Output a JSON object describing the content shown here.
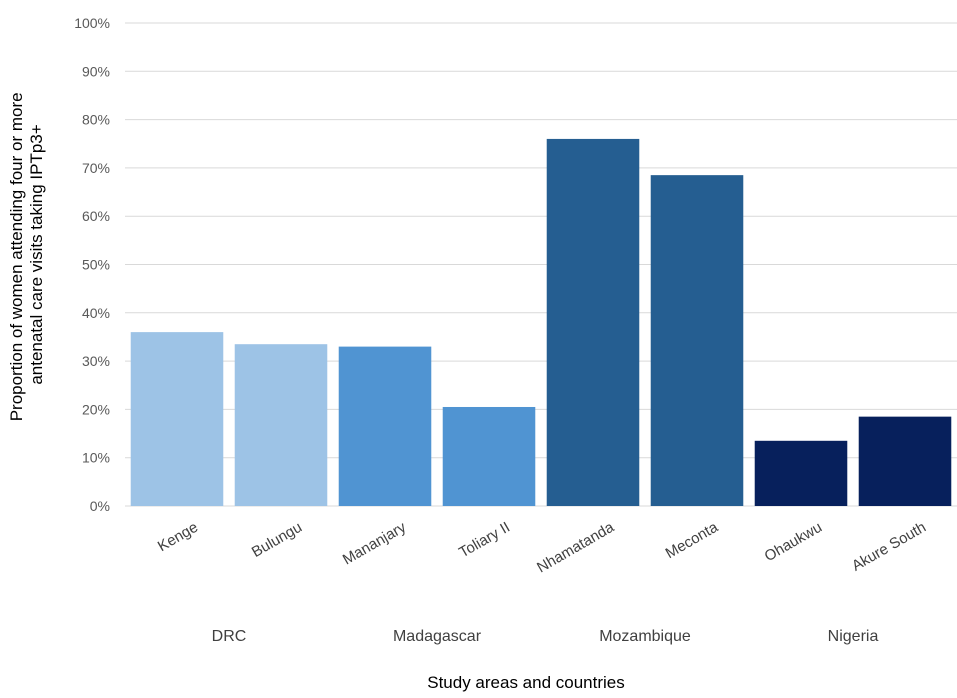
{
  "chart_data": {
    "type": "bar",
    "title": "",
    "xlabel": "Study areas and countries",
    "ylabel_lines": [
      "Proportion of women attending four or more",
      "antenatal care visits taking IPTp3+"
    ],
    "ylim": [
      0,
      100
    ],
    "y_unit": "%",
    "y_ticks": [
      "0%",
      "10%",
      "20%",
      "30%",
      "40%",
      "50%",
      "60%",
      "70%",
      "80%",
      "90%",
      "100%"
    ],
    "grid": true,
    "categories": [
      "Kenge",
      "Bulungu",
      "Mananjary",
      "Toliary II",
      "Nhamatanda",
      "Meconta",
      "Ohaukwu",
      "Akure South"
    ],
    "values": [
      36,
      33.5,
      33,
      20.5,
      76,
      68.5,
      13.5,
      18.5
    ],
    "groups": [
      {
        "label": "DRC",
        "members": [
          "Kenge",
          "Bulungu"
        ],
        "color": "#9dc3e6"
      },
      {
        "label": "Madagascar",
        "members": [
          "Mananjary",
          "Toliary II"
        ],
        "color": "#5094d2"
      },
      {
        "label": "Mozambique",
        "members": [
          "Nhamatanda",
          "Meconta"
        ],
        "color": "#255e91"
      },
      {
        "label": "Nigeria",
        "members": [
          "Ohaukwu",
          "Akure South"
        ],
        "color": "#07205c"
      }
    ]
  }
}
